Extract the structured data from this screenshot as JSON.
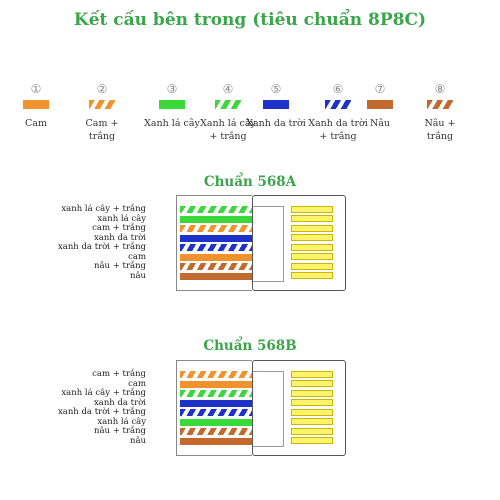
{
  "title": "Kết cấu bên trong (tiêu chuẩn 8P8C)",
  "colors": {
    "orange": "#f0922e",
    "green": "#3ad83a",
    "blue": "#1d32c8",
    "brown": "#c26a2e",
    "white": "#ffffff",
    "title_green": "#3aa54a",
    "pin_yellow": "#fff36b"
  },
  "legend": [
    {
      "num": "①",
      "label": "Cam",
      "color": "orange",
      "striped": false
    },
    {
      "num": "②",
      "label": "Cam + trắng",
      "color": "orange",
      "striped": true
    },
    {
      "num": "③",
      "label": "Xanh lá cây",
      "color": "green",
      "striped": false
    },
    {
      "num": "④",
      "label": "Xanh lá cây + trắng",
      "color": "green",
      "striped": true
    },
    {
      "num": "⑤",
      "label": "Xanh da trời",
      "color": "blue",
      "striped": false
    },
    {
      "num": "⑥",
      "label": "Xanh da trời + trắng",
      "color": "blue",
      "striped": true
    },
    {
      "num": "⑦",
      "label": "Nâu",
      "color": "brown",
      "striped": false
    },
    {
      "num": "⑧",
      "label": "Nâu + trắng",
      "color": "brown",
      "striped": true
    }
  ],
  "standards": [
    {
      "title": "Chuẩn 568A",
      "wires": [
        {
          "label": "xanh lá cây + trắng",
          "color": "green",
          "striped": true
        },
        {
          "label": "xanh lá cây",
          "color": "green",
          "striped": false
        },
        {
          "label": "cam + trắng",
          "color": "orange",
          "striped": true
        },
        {
          "label": "xanh da trời",
          "color": "blue",
          "striped": false
        },
        {
          "label": "xanh da trời + trắng",
          "color": "blue",
          "striped": true
        },
        {
          "label": "cam",
          "color": "orange",
          "striped": false
        },
        {
          "label": "nâu + trắng",
          "color": "brown",
          "striped": true
        },
        {
          "label": "nâu",
          "color": "brown",
          "striped": false
        }
      ]
    },
    {
      "title": "Chuẩn 568B",
      "wires": [
        {
          "label": "cam + trắng",
          "color": "orange",
          "striped": true
        },
        {
          "label": "cam",
          "color": "orange",
          "striped": false
        },
        {
          "label": "xanh lá cây + trắng",
          "color": "green",
          "striped": true
        },
        {
          "label": "xanh da trời",
          "color": "blue",
          "striped": false
        },
        {
          "label": "xanh da trời + trắng",
          "color": "blue",
          "striped": true
        },
        {
          "label": "xanh lá cây",
          "color": "green",
          "striped": false
        },
        {
          "label": "nâu + trắng",
          "color": "brown",
          "striped": true
        },
        {
          "label": "nâu",
          "color": "brown",
          "striped": false
        }
      ]
    }
  ]
}
